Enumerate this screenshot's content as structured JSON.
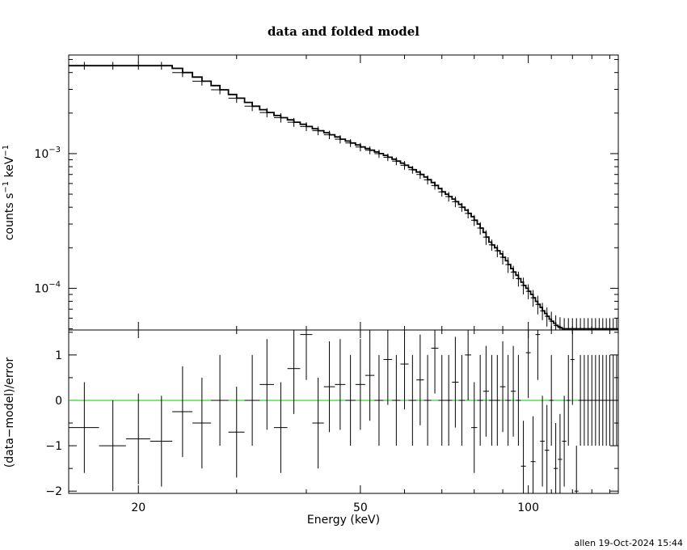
{
  "chart_data": [
    {
      "type": "line",
      "panel": "spectrum",
      "title": "data and folded model",
      "xlabel": "Energy (keV)",
      "ylabel": "counts s",
      "ylabel_sup1": "−1",
      "ylabel_unit": " keV",
      "ylabel_sup2": "−1",
      "xscale": "log",
      "yscale": "log",
      "xlim": [
        15,
        145
      ],
      "ylim": [
        4.9e-05,
        0.0054
      ],
      "xticks": [
        20,
        50,
        100
      ],
      "xticklabels": [
        "20",
        "50",
        "100"
      ],
      "ytick_base": "10",
      "yticks": [
        0.001,
        0.0001
      ],
      "ytick_exponents": [
        "−3",
        "−4"
      ],
      "series": [
        {
          "type": "step",
          "edges": [
            15.0,
            16.0,
            17.0,
            18.0,
            19.0,
            20.0,
            21.0,
            22.0,
            23.0,
            24.0,
            25.0,
            26.0,
            27.0,
            28.0,
            29.0,
            30.0,
            31.0,
            32.0,
            33.0,
            34.0,
            35.0,
            36.0,
            37.0,
            38.0,
            39.0,
            40.0,
            41.0,
            42.0,
            43.0,
            44.0,
            45.0,
            46.0,
            47.0,
            48.0,
            49.0,
            50.0,
            51.0,
            52.0,
            53.0,
            54.0,
            55.0,
            56.0,
            57.0,
            58.0,
            59.0,
            60.0,
            61.0,
            62.0,
            63.0,
            64.0,
            65.0,
            66.0,
            67.0,
            68.0,
            69.0,
            70.0,
            71.0,
            72.0,
            73.0,
            74.0,
            75.0,
            76.0,
            77.0,
            78.0,
            79.0,
            80.0,
            81.0,
            82.0,
            83.0,
            84.0,
            85.0,
            86.0,
            87.0,
            88.0,
            89.0,
            90.0,
            91.0,
            92.0,
            93.0,
            94.0,
            95.0,
            96.0,
            97.0,
            98.0,
            99.0,
            100.0,
            101.0,
            102.0,
            103.0,
            104.0,
            105.0,
            106.0,
            107.0,
            108.0,
            109.0,
            110.0,
            111.0,
            112.0,
            113.0,
            114.0,
            115.0,
            116.0,
            117.0,
            118.0,
            119.0,
            120.0,
            121.0,
            122.0,
            123.0,
            124.0,
            125.0,
            126.0,
            127.0,
            128.0,
            129.0,
            130.0,
            131.0,
            132.0,
            133.0,
            134.0,
            135.0,
            136.0,
            137.0,
            138.0,
            139.0,
            140.0,
            141.0,
            142.0,
            143.0,
            144.0,
            145.0
          ],
          "values": [
            0.0045,
            0.0045,
            0.0045,
            0.0045,
            0.0045,
            0.0045,
            0.0045,
            0.0045,
            0.0043,
            0.004,
            0.0037,
            0.00345,
            0.0032,
            0.00298,
            0.00275,
            0.00258,
            0.0024,
            0.00225,
            0.00212,
            0.00202,
            0.00192,
            0.00185,
            0.00178,
            0.00171,
            0.00165,
            0.00159,
            0.00153,
            0.00148,
            0.00143,
            0.00138,
            0.00133,
            0.00128,
            0.00124,
            0.0012,
            0.00116,
            0.00112,
            0.00109,
            0.00106,
            0.00103,
            0.001,
            0.00097,
            0.00094,
            0.00091,
            0.00088,
            0.00085,
            0.00082,
            0.00079,
            0.00076,
            0.00073,
            0.0007,
            0.00067,
            0.00064,
            0.00061,
            0.00058,
            0.00055,
            0.00052,
            0.0005,
            0.00048,
            0.00046,
            0.00044,
            0.00042,
            0.0004,
            0.00038,
            0.00036,
            0.00034,
            0.00032,
            0.0003,
            0.00028,
            0.00026,
            0.00024,
            0.00022,
            0.00021,
            0.0002,
            0.00019,
            0.00018,
            0.00017,
            0.00016,
            0.00015,
            0.00014,
            0.000132,
            0.000125,
            0.000118,
            0.000111,
            0.000105,
            0.0001,
            9.5e-05,
            9e-05,
            8.5e-05,
            8e-05,
            7.6e-05,
            7.2e-05,
            6.8e-05,
            6.5e-05,
            6.2e-05,
            5.9e-05,
            5.7e-05,
            5.5e-05,
            5.3e-05,
            5.2e-05,
            5.1e-05,
            5e-05,
            5e-05,
            5e-05,
            5e-05,
            5e-05,
            5e-05,
            5e-05,
            5e-05,
            5e-05,
            5e-05,
            5e-05,
            5e-05,
            5e-05,
            5e-05,
            5e-05,
            5e-05,
            5e-05,
            5e-05,
            5e-05,
            5e-05,
            5e-05,
            5e-05,
            5e-05,
            5e-05,
            5e-05,
            5e-05,
            5e-05,
            5e-05,
            5e-05,
            5e-05
          ]
        },
        {
          "type": "errorbar",
          "x": [
            16.0,
            18.0,
            20.0,
            22.0,
            24.0,
            26.0,
            28.0,
            30.0,
            32.0,
            34.0,
            36.0,
            38.0,
            40.0,
            42.0,
            44.0,
            46.0,
            48.0,
            50.0,
            52.0,
            54.0,
            56.0,
            58.0,
            60.0,
            62.0,
            64.0,
            66.0,
            68.0,
            70.0,
            72.0,
            74.0,
            76.0,
            78.0,
            80.0,
            82.0,
            84.0,
            86.0,
            88.0,
            90.0,
            92.0,
            94.0,
            96.0,
            98.0,
            100.0,
            102.0,
            104.0,
            106.0,
            108.0,
            110.0,
            112.0,
            114.0,
            116.0,
            118.0,
            120.0,
            122.0,
            124.0,
            126.0,
            128.0,
            130.0,
            132.0,
            134.0,
            136.0,
            138.0,
            140.0,
            142.0,
            144.0
          ],
          "xerr": [
            1.0,
            1.0,
            1.0,
            1.0,
            1.0,
            1.0,
            1.0,
            1.0,
            1.0,
            1.0,
            1.0,
            1.0,
            1.0,
            1.0,
            1.0,
            1.0,
            1.0,
            1.0,
            1.0,
            1.0,
            1.0,
            1.0,
            1.0,
            1.0,
            1.0,
            1.0,
            1.0,
            1.0,
            1.0,
            1.0,
            1.0,
            1.0,
            1.0,
            1.0,
            1.0,
            1.0,
            1.0,
            1.0,
            1.0,
            1.0,
            1.0,
            1.0,
            1.0,
            1.0,
            1.0,
            1.0,
            1.0,
            1.0,
            1.0,
            1.0,
            1.0,
            1.0,
            1.0,
            1.0,
            1.0,
            1.0,
            1.0,
            1.0,
            1.0,
            1.0,
            1.0,
            1.0,
            1.0,
            1.0,
            1.0
          ],
          "y": [
            0.0045,
            0.0045,
            0.0045,
            0.0045,
            0.004,
            0.00345,
            0.00298,
            0.00258,
            0.00225,
            0.00202,
            0.00185,
            0.00171,
            0.00159,
            0.00148,
            0.00138,
            0.00128,
            0.0012,
            0.00112,
            0.00106,
            0.001,
            0.00094,
            0.00088,
            0.00082,
            0.00076,
            0.0007,
            0.00064,
            0.00058,
            0.00052,
            0.00048,
            0.00044,
            0.0004,
            0.00036,
            0.00032,
            0.00028,
            0.00024,
            0.00021,
            0.00019,
            0.00017,
            0.00015,
            0.000132,
            0.000118,
            0.000105,
            9.5e-05,
            8.5e-05,
            7.6e-05,
            6.8e-05,
            6.2e-05,
            5.7e-05,
            5.3e-05,
            5.1e-05,
            5e-05,
            5e-05,
            5e-05,
            5e-05,
            5e-05,
            5e-05,
            5e-05,
            5e-05,
            5e-05,
            5e-05,
            5e-05,
            5e-05,
            5e-05,
            5e-05,
            5e-05
          ],
          "yerr": [
            0.0003,
            0.0003,
            0.0003,
            0.0003,
            0.0003,
            0.00025,
            0.00022,
            0.0002,
            0.00018,
            0.00016,
            0.00015,
            0.00013,
            0.00012,
            0.00011,
            0.0001,
            9e-05,
            8e-05,
            8e-05,
            7e-05,
            7e-05,
            6e-05,
            6e-05,
            6e-05,
            5e-05,
            5e-05,
            5e-05,
            4e-05,
            4e-05,
            4e-05,
            4e-05,
            3e-05,
            3e-05,
            3e-05,
            3e-05,
            3e-05,
            2e-05,
            2e-05,
            2e-05,
            2e-05,
            1.5e-05,
            1.5e-05,
            1.5e-05,
            1.2e-05,
            1.2e-05,
            1.2e-05,
            1e-05,
            1e-05,
            1e-05,
            1e-05,
            1e-05,
            1e-05,
            1e-05,
            1e-05,
            1e-05,
            1e-05,
            1e-05,
            1e-05,
            1e-05,
            1e-05,
            1e-05,
            1e-05,
            1e-05,
            1e-05,
            1e-05,
            1e-05
          ]
        }
      ]
    },
    {
      "type": "scatter",
      "panel": "residuals",
      "xlabel": "Energy (keV)",
      "ylabel": "(data−model)/error",
      "xscale": "log",
      "yscale": "linear",
      "xlim": [
        15,
        145
      ],
      "ylim": [
        -2.05,
        1.55
      ],
      "xticks": [
        20,
        50,
        100
      ],
      "xticklabels": [
        "20",
        "50",
        "100"
      ],
      "yticks": [
        1,
        0,
        -1,
        -2
      ],
      "yticklabels": [
        "1",
        "0",
        "−1",
        "−2"
      ],
      "zero_line_color": "#00cc00",
      "series": [
        {
          "type": "errorbar",
          "x": [
            16.0,
            18.0,
            20.0,
            22.0,
            24.0,
            26.0,
            28.0,
            30.0,
            32.0,
            34.0,
            36.0,
            38.0,
            40.0,
            42.0,
            44.0,
            46.0,
            48.0,
            50.0,
            52.0,
            54.0,
            56.0,
            58.0,
            60.0,
            62.0,
            64.0,
            66.0,
            68.0,
            70.0,
            72.0,
            74.0,
            76.0,
            78.0,
            80.0,
            82.0,
            84.0,
            86.0,
            88.0,
            90.0,
            92.0,
            94.0,
            96.0,
            98.0,
            100.0,
            102.0,
            104.0,
            106.0,
            108.0,
            110.0,
            112.0,
            114.0,
            116.0,
            118.0,
            120.0,
            122.0,
            124.0,
            126.0,
            128.0,
            130.0,
            132.0,
            134.0,
            136.0,
            138.0,
            140.0,
            142.0,
            144.0
          ],
          "xerr": [
            1.0,
            1.0,
            1.0,
            1.0,
            1.0,
            1.0,
            1.0,
            1.0,
            1.0,
            1.0,
            1.0,
            1.0,
            1.0,
            1.0,
            1.0,
            1.0,
            1.0,
            1.0,
            1.0,
            1.0,
            1.0,
            1.0,
            1.0,
            1.0,
            1.0,
            1.0,
            1.0,
            1.0,
            1.0,
            1.0,
            1.0,
            1.0,
            1.0,
            1.0,
            1.0,
            1.0,
            1.0,
            1.0,
            1.0,
            1.0,
            1.0,
            1.0,
            1.0,
            1.0,
            1.0,
            1.0,
            1.0,
            1.0,
            1.0,
            1.0,
            1.0,
            1.0,
            1.0,
            1.0,
            1.0,
            1.0,
            1.0,
            1.0,
            1.0,
            1.0,
            1.0,
            1.0,
            1.0,
            1.0,
            1.0
          ],
          "y": [
            -0.6,
            -1.0,
            -0.85,
            -0.9,
            -0.25,
            -0.5,
            0.0,
            -0.7,
            0.0,
            0.35,
            -0.6,
            0.7,
            1.45,
            -0.5,
            0.3,
            0.35,
            0.0,
            0.35,
            0.55,
            0.0,
            0.9,
            0.0,
            0.8,
            0.0,
            0.45,
            0.0,
            1.15,
            0.0,
            0.0,
            0.4,
            0.0,
            1.0,
            -0.6,
            0.0,
            0.2,
            0.0,
            0.0,
            0.3,
            0.0,
            0.2,
            0.0,
            -1.45,
            1.05,
            -1.35,
            1.45,
            -0.9,
            -1.1,
            0.0,
            -1.5,
            -1.3,
            -0.9,
            0.0,
            0.9,
            -2.0,
            0.0,
            0.0,
            0.0,
            0.0,
            0.0,
            0.0,
            0.0,
            0.0,
            0.0,
            0.0,
            0.0
          ],
          "yerr": [
            1.0,
            1.0,
            1.0,
            1.0,
            1.0,
            1.0,
            1.0,
            1.0,
            1.0,
            1.0,
            1.0,
            1.0,
            1.0,
            1.0,
            1.0,
            1.0,
            1.0,
            1.0,
            1.0,
            1.0,
            1.0,
            1.0,
            1.0,
            1.0,
            1.0,
            1.0,
            1.0,
            1.0,
            1.0,
            1.0,
            1.0,
            1.0,
            1.0,
            1.0,
            1.0,
            1.0,
            1.0,
            1.0,
            1.0,
            1.0,
            1.0,
            1.0,
            1.0,
            1.0,
            1.0,
            1.0,
            1.0,
            1.0,
            1.0,
            1.0,
            1.0,
            1.0,
            1.0,
            1.0,
            1.0,
            1.0,
            1.0,
            1.0,
            1.0,
            1.0,
            1.0,
            1.0,
            1.0,
            1.0,
            1.0
          ]
        }
      ]
    }
  ],
  "footer": {
    "stamp": "allen 19-Oct-2024 15:44"
  }
}
